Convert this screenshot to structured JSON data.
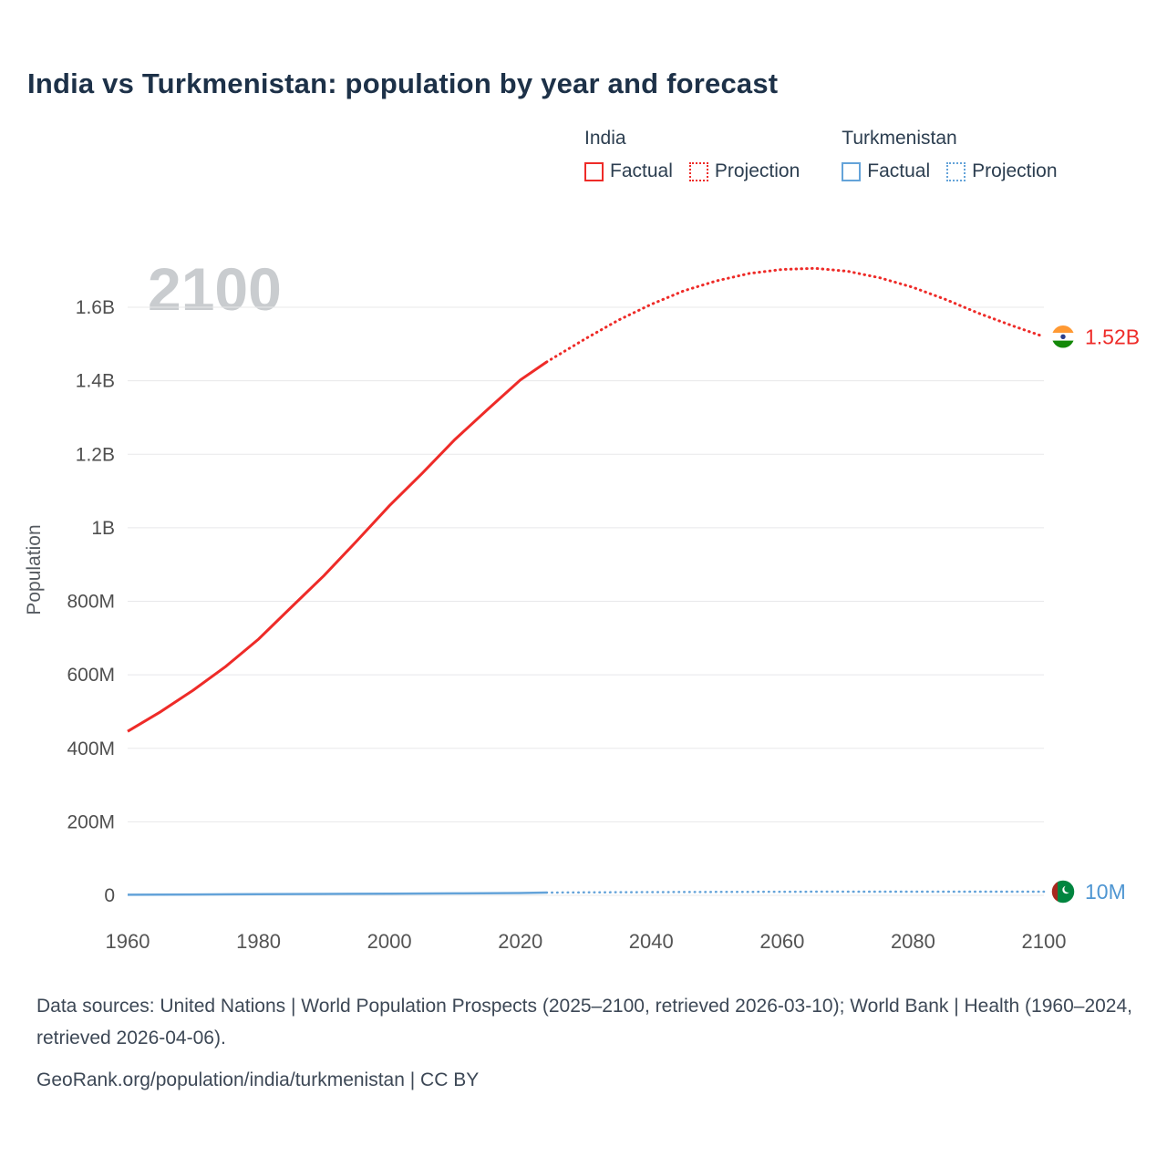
{
  "header": {
    "title": "India vs Turkmenistan: population by year and forecast"
  },
  "watermark": "2100",
  "legend": {
    "groups": [
      {
        "label": "India",
        "color": "#ee2b28",
        "items": [
          {
            "label": "Factual",
            "style": "solid"
          },
          {
            "label": "Projection",
            "style": "dotted"
          }
        ]
      },
      {
        "label": "Turkmenistan",
        "color": "#64a3d9",
        "items": [
          {
            "label": "Factual",
            "style": "solid"
          },
          {
            "label": "Projection",
            "style": "dotted"
          }
        ]
      }
    ]
  },
  "chart_data": {
    "type": "line",
    "title": "India vs Turkmenistan: population by year and forecast",
    "xlabel": "",
    "ylabel": "Population",
    "xlim": [
      1957,
      2113
    ],
    "ylim": [
      0,
      1750000000
    ],
    "grid": true,
    "legend_position": "top-right",
    "xticks": [
      1960,
      1980,
      2000,
      2020,
      2040,
      2060,
      2080,
      2100
    ],
    "yticks": [
      {
        "value": 0,
        "label": "0"
      },
      {
        "value": 200000000,
        "label": "200M"
      },
      {
        "value": 400000000,
        "label": "400M"
      },
      {
        "value": 600000000,
        "label": "600M"
      },
      {
        "value": 800000000,
        "label": "800M"
      },
      {
        "value": 1000000000,
        "label": "1B"
      },
      {
        "value": 1200000000,
        "label": "1.2B"
      },
      {
        "value": 1400000000,
        "label": "1.4B"
      },
      {
        "value": 1600000000,
        "label": "1.6B"
      }
    ],
    "series": [
      {
        "name": "India Factual",
        "color": "#ee2b28",
        "style": "solid",
        "width": 3,
        "points": [
          [
            1960,
            446000000
          ],
          [
            1965,
            499000000
          ],
          [
            1970,
            558000000
          ],
          [
            1975,
            623000000
          ],
          [
            1980,
            697000000
          ],
          [
            1985,
            784000000
          ],
          [
            1990,
            870000000
          ],
          [
            1995,
            964000000
          ],
          [
            2000,
            1060000000
          ],
          [
            2005,
            1148000000
          ],
          [
            2010,
            1240000000
          ],
          [
            2015,
            1322000000
          ],
          [
            2020,
            1402000000
          ],
          [
            2024,
            1451000000
          ]
        ]
      },
      {
        "name": "India Projection",
        "color": "#ee2b28",
        "style": "dotted",
        "width": 3,
        "points": [
          [
            2024,
            1451000000
          ],
          [
            2030,
            1515000000
          ],
          [
            2035,
            1565000000
          ],
          [
            2040,
            1608000000
          ],
          [
            2045,
            1645000000
          ],
          [
            2050,
            1672000000
          ],
          [
            2055,
            1692000000
          ],
          [
            2060,
            1703000000
          ],
          [
            2065,
            1706000000
          ],
          [
            2070,
            1698000000
          ],
          [
            2075,
            1680000000
          ],
          [
            2080,
            1654000000
          ],
          [
            2085,
            1621000000
          ],
          [
            2090,
            1584000000
          ],
          [
            2095,
            1551000000
          ],
          [
            2100,
            1520000000
          ]
        ]
      },
      {
        "name": "Turkmenistan Factual",
        "color": "#64a3d9",
        "style": "solid",
        "width": 2.5,
        "points": [
          [
            1960,
            1600000
          ],
          [
            1970,
            2200000
          ],
          [
            1980,
            2900000
          ],
          [
            1990,
            3700000
          ],
          [
            2000,
            4500000
          ],
          [
            2010,
            5300000
          ],
          [
            2020,
            6300000
          ],
          [
            2024,
            7500000
          ]
        ]
      },
      {
        "name": "Turkmenistan Projection",
        "color": "#64a3d9",
        "style": "dotted",
        "width": 2.5,
        "points": [
          [
            2024,
            7500000
          ],
          [
            2030,
            8000000
          ],
          [
            2040,
            8700000
          ],
          [
            2050,
            9200000
          ],
          [
            2060,
            9600000
          ],
          [
            2070,
            9800000
          ],
          [
            2080,
            9900000
          ],
          [
            2090,
            10000000
          ],
          [
            2100,
            10000000
          ]
        ]
      }
    ],
    "end_labels": [
      {
        "series": "India",
        "flag": "india",
        "value": 1520000000,
        "text": "1.52B",
        "color": "#ee2b28"
      },
      {
        "series": "Turkmenistan",
        "flag": "turkmenistan",
        "value": 10000000,
        "text": "10M",
        "color": "#4f96d2"
      }
    ]
  },
  "footer": {
    "sources": "Data sources: United Nations | World Population Prospects (2025–2100, retrieved 2026-03-10); World Bank | Health (1960–2024, retrieved 2026-04-06).",
    "attribution": "GeoRank.org/population/india/turkmenistan | CC BY"
  }
}
